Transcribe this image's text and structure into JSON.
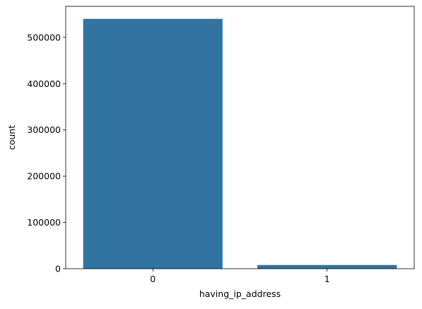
{
  "chart_data": {
    "type": "bar",
    "title": "",
    "xlabel": "having_ip_address",
    "ylabel": "count",
    "categories": [
      "0",
      "1"
    ],
    "values": [
      540000,
      8000
    ],
    "ylim": [
      0,
      567000
    ],
    "yticks": [
      0,
      100000,
      200000,
      300000,
      400000,
      500000
    ],
    "ytick_labels": [
      "0",
      "100000",
      "200000",
      "300000",
      "400000",
      "500000"
    ],
    "grid": false,
    "legend": "none",
    "bar_color": "#3274a1"
  }
}
